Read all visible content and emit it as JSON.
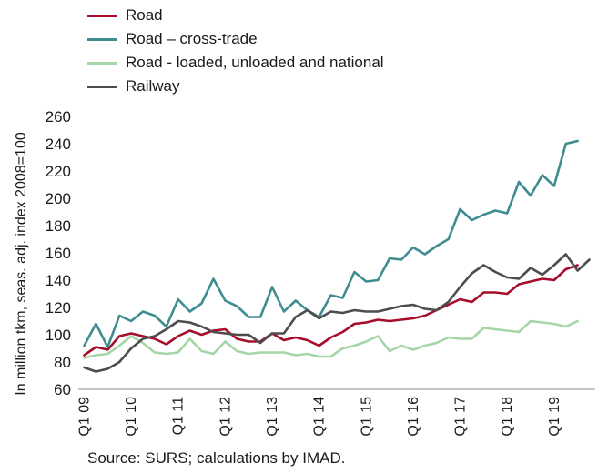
{
  "chart_data": {
    "type": "line",
    "ylabel": "In million tkm, seas. adj. index 2008=100",
    "ylim": [
      60,
      260
    ],
    "yticks": [
      60,
      80,
      100,
      120,
      140,
      160,
      180,
      200,
      220,
      240,
      260
    ],
    "x_tick_labels": [
      "Q1 09",
      "Q1 10",
      "Q1 11",
      "Q1 12",
      "Q1 13",
      "Q1 14",
      "Q1 15",
      "Q1 16",
      "Q1 17",
      "Q1 18",
      "Q1 19"
    ],
    "x_tick_quarter_index": [
      0,
      4,
      8,
      12,
      16,
      20,
      24,
      28,
      32,
      36,
      40
    ],
    "grid": false,
    "legend_position": "top-left",
    "series": [
      {
        "name": "Road",
        "color": "#a50d2b",
        "values": [
          85,
          91,
          89,
          99,
          101,
          99,
          97,
          93,
          99,
          103,
          100,
          103,
          104,
          97,
          95,
          95,
          101,
          96,
          98,
          96,
          92,
          98,
          102,
          108,
          109,
          111,
          110,
          111,
          112,
          114,
          118,
          122,
          126,
          124,
          131,
          131,
          130,
          137,
          139,
          141,
          140,
          148,
          151
        ]
      },
      {
        "name": "Road – cross-trade",
        "color": "#3f8c91",
        "values": [
          92,
          108,
          91,
          114,
          110,
          117,
          114,
          106,
          126,
          117,
          123,
          141,
          125,
          121,
          113,
          113,
          135,
          117,
          125,
          118,
          113,
          129,
          127,
          146,
          139,
          140,
          156,
          155,
          164,
          159,
          165,
          170,
          192,
          184,
          188,
          191,
          189,
          212,
          202,
          217,
          209,
          240,
          242
        ]
      },
      {
        "name": "Road - loaded, unloaded and national",
        "color": "#a5d6a7",
        "values": [
          83,
          85,
          86,
          92,
          99,
          94,
          87,
          86,
          87,
          97,
          88,
          86,
          95,
          88,
          86,
          87,
          87,
          87,
          85,
          86,
          84,
          84,
          90,
          92,
          95,
          99,
          88,
          92,
          89,
          92,
          94,
          98,
          97,
          97,
          105,
          104,
          103,
          102,
          110,
          109,
          108,
          106,
          110
        ]
      },
      {
        "name": "Railway",
        "color": "#4d4d4d",
        "values": [
          76,
          73,
          75,
          80,
          90,
          97,
          99,
          104,
          110,
          109,
          106,
          102,
          101,
          100,
          100,
          94,
          101,
          101,
          113,
          118,
          112,
          117,
          116,
          118,
          117,
          117,
          119,
          121,
          122,
          119,
          118,
          124,
          135,
          145,
          151,
          146,
          142,
          141,
          149,
          144,
          151,
          159,
          147,
          155
        ]
      }
    ]
  },
  "source_text": "Source: SURS; calculations by IMAD."
}
